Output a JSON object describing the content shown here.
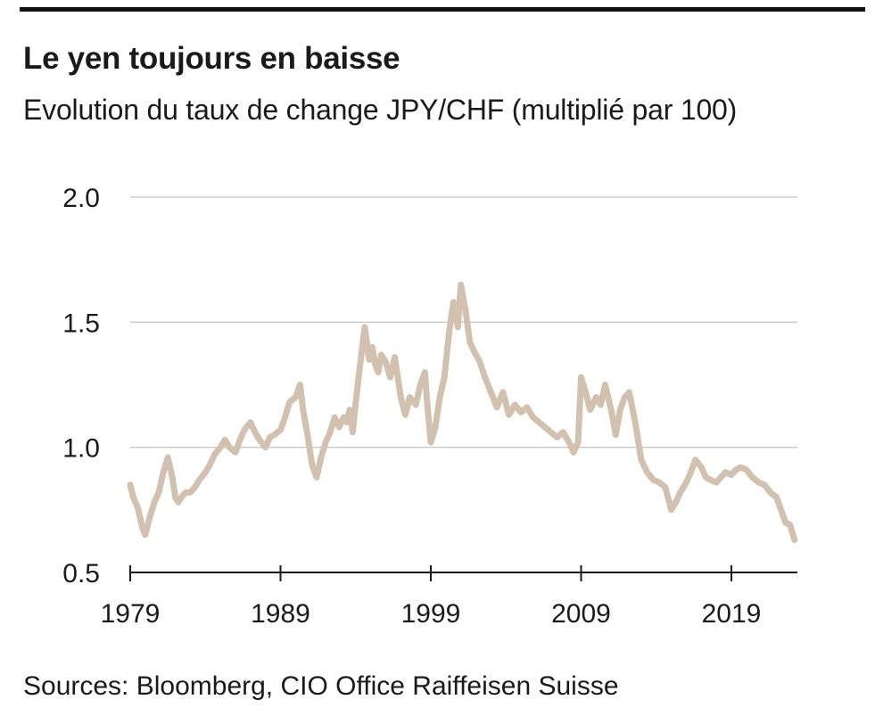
{
  "title": "Le yen toujours en baisse",
  "subtitle": "Evolution du taux de change JPY/CHF (multiplié par 100)",
  "source": "Sources: Bloomberg, CIO Office Raiffeisen Suisse",
  "colors": {
    "line": "#d2c1ae",
    "grid": "#c8c8c8",
    "axis": "#1a1a1a"
  },
  "chart_data": {
    "type": "line",
    "title": "Le yen toujours en baisse",
    "subtitle": "Evolution du taux de change JPY/CHF (multiplié par 100)",
    "xlabel": "",
    "ylabel": "",
    "xlim": [
      1979,
      2023.4
    ],
    "ylim": [
      0.5,
      2.0
    ],
    "yticks": [
      "2.0",
      "1.5",
      "1.0",
      "0.5"
    ],
    "xticks": [
      "1979",
      "1989",
      "1999",
      "2009",
      "2019"
    ],
    "grid": "horizontal",
    "legend": "none",
    "series": [
      {
        "x": [
          1979.0,
          1979.2,
          1979.5,
          1979.8,
          1980.0,
          1980.3,
          1980.6,
          1980.9,
          1981.2,
          1981.5,
          1981.8,
          1982.0,
          1982.2,
          1982.4,
          1982.7,
          1983.0,
          1983.3,
          1983.6,
          1984.0,
          1984.3,
          1984.6,
          1985.0,
          1985.3,
          1985.6,
          1986.0,
          1986.3,
          1986.6,
          1987.0,
          1987.3,
          1987.6,
          1988.0,
          1988.3,
          1988.6,
          1989.0,
          1989.3,
          1989.6,
          1990.0,
          1990.3,
          1990.5,
          1990.8,
          1991.1,
          1991.4,
          1991.7,
          1992.0,
          1992.3,
          1992.6,
          1992.9,
          1993.2,
          1993.4,
          1993.6,
          1993.8,
          1994.0,
          1994.3,
          1994.6,
          1994.9,
          1995.1,
          1995.3,
          1995.5,
          1995.7,
          1996.0,
          1996.3,
          1996.6,
          1997.0,
          1997.3,
          1997.6,
          1998.0,
          1998.3,
          1998.6,
          1998.8,
          1999.0,
          1999.3,
          1999.6,
          1999.9,
          2000.2,
          2000.5,
          2000.8,
          2001.0,
          2001.3,
          2001.6,
          2001.9,
          2002.2,
          2002.6,
          2003.0,
          2003.4,
          2003.8,
          2004.2,
          2004.6,
          2005.0,
          2005.4,
          2005.8,
          2006.2,
          2006.6,
          2007.0,
          2007.4,
          2007.8,
          2008.2,
          2008.5,
          2008.8,
          2009.0,
          2009.3,
          2009.6,
          2010.0,
          2010.3,
          2010.6,
          2011.0,
          2011.3,
          2011.6,
          2011.9,
          2012.2,
          2012.6,
          2013.0,
          2013.4,
          2013.8,
          2014.2,
          2014.6,
          2015.0,
          2015.3,
          2015.6,
          2016.0,
          2016.3,
          2016.6,
          2017.0,
          2017.3,
          2017.6,
          2018.0,
          2018.3,
          2018.6,
          2019.0,
          2019.3,
          2019.6,
          2020.0,
          2020.4,
          2020.8,
          2021.2,
          2021.6,
          2022.0,
          2022.3,
          2022.6,
          2022.9,
          2023.2
        ],
        "y": [
          0.85,
          0.8,
          0.76,
          0.68,
          0.65,
          0.72,
          0.78,
          0.82,
          0.9,
          0.96,
          0.88,
          0.8,
          0.78,
          0.8,
          0.82,
          0.82,
          0.84,
          0.87,
          0.9,
          0.93,
          0.97,
          1.0,
          1.03,
          1.0,
          0.98,
          1.03,
          1.07,
          1.1,
          1.06,
          1.03,
          1.0,
          1.04,
          1.05,
          1.07,
          1.12,
          1.18,
          1.2,
          1.25,
          1.15,
          1.05,
          0.93,
          0.88,
          0.96,
          1.02,
          1.06,
          1.12,
          1.08,
          1.12,
          1.1,
          1.15,
          1.06,
          1.18,
          1.33,
          1.48,
          1.35,
          1.4,
          1.33,
          1.3,
          1.37,
          1.34,
          1.28,
          1.36,
          1.2,
          1.13,
          1.2,
          1.17,
          1.25,
          1.3,
          1.15,
          1.02,
          1.08,
          1.2,
          1.28,
          1.45,
          1.58,
          1.48,
          1.65,
          1.55,
          1.42,
          1.38,
          1.35,
          1.28,
          1.22,
          1.16,
          1.22,
          1.13,
          1.17,
          1.14,
          1.16,
          1.12,
          1.1,
          1.08,
          1.06,
          1.04,
          1.06,
          1.02,
          0.98,
          1.02,
          1.28,
          1.22,
          1.15,
          1.2,
          1.17,
          1.25,
          1.15,
          1.05,
          1.15,
          1.2,
          1.22,
          1.1,
          0.95,
          0.9,
          0.87,
          0.86,
          0.84,
          0.75,
          0.78,
          0.82,
          0.86,
          0.9,
          0.95,
          0.92,
          0.88,
          0.87,
          0.86,
          0.88,
          0.9,
          0.89,
          0.91,
          0.92,
          0.91,
          0.88,
          0.86,
          0.85,
          0.82,
          0.8,
          0.75,
          0.7,
          0.69,
          0.63
        ]
      }
    ]
  }
}
